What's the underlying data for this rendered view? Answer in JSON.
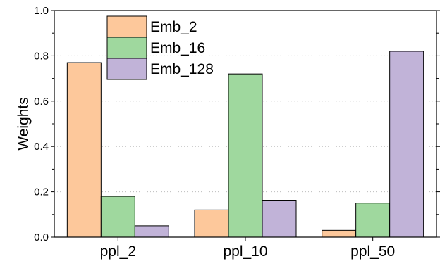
{
  "chart_data": {
    "type": "bar",
    "categories": [
      "ppl_2",
      "ppl_10",
      "ppl_50"
    ],
    "series": [
      {
        "name": "Emb_2",
        "values": [
          0.77,
          0.12,
          0.03
        ],
        "color": "#fdc89b"
      },
      {
        "name": "Emb_16",
        "values": [
          0.18,
          0.72,
          0.15
        ],
        "color": "#9fd89e"
      },
      {
        "name": "Emb_128",
        "values": [
          0.05,
          0.16,
          0.82
        ],
        "color": "#c1b3d8"
      }
    ],
    "title": "",
    "xlabel": "",
    "ylabel": "Weights",
    "ylim": [
      0.0,
      1.0
    ],
    "yticks": [
      "0.0",
      "0.2",
      "0.4",
      "0.6",
      "0.8",
      "1.0"
    ],
    "grid": "horizontal dotted",
    "legend_position": "top-left"
  }
}
